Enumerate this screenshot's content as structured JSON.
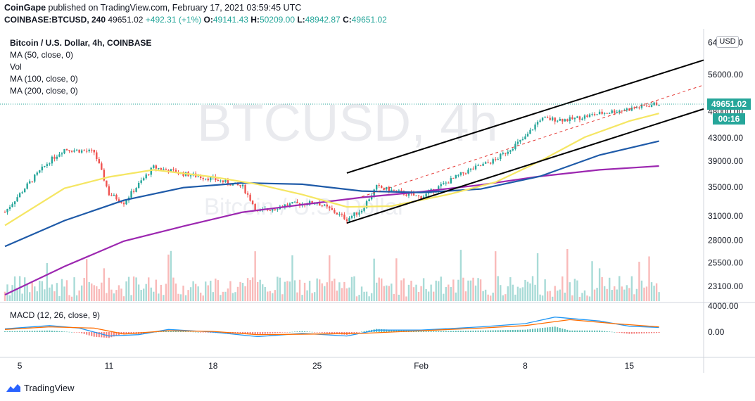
{
  "header": {
    "publisher": "CoinGape",
    "published_text": "published on TradingView.com, February 17, 2021 03:59:45 UTC",
    "symbol": "COINBASE:BTCUSD, 240",
    "last": "49651.02",
    "change": "+492.31 (+1%)",
    "o_label": "O:",
    "o_value": "49141.43",
    "h_label": "H:",
    "h_value": "50209.00",
    "l_label": "L:",
    "l_value": "48942.87",
    "c_label": "C:",
    "c_value": "49651.02"
  },
  "legend": {
    "title": "Bitcoin / U.S. Dollar, 4h, COINBASE",
    "ma50": "MA (50, close, 0)",
    "vol": "Vol",
    "ma100": "MA (100, close, 0)",
    "ma200": "MA (200, close, 0)",
    "macd": "MACD (12, 26, close, 9)"
  },
  "watermark": {
    "symbol": "BTCUSD, 4h",
    "name": "Bitcoin / U.S. Dollar"
  },
  "axis_labels": {
    "price_ticks": [
      "64000.00",
      "56000.00",
      "48000.00",
      "43000.00",
      "39000.00",
      "35000.00",
      "31000.00",
      "28000.00",
      "25500.00",
      "23100.00"
    ],
    "macd_ticks": [
      "4000.00",
      "0.00"
    ],
    "x_ticks": [
      "5",
      "11",
      "18",
      "25",
      "Feb",
      "8",
      "15"
    ]
  },
  "badges": {
    "currency": "USD",
    "last_price": "49651.02",
    "countdown": "00:16"
  },
  "footer": {
    "brand": "TradingView"
  },
  "colors": {
    "up": "#26a69a",
    "down": "#ef5350",
    "ma50": "#f5e663",
    "ma100": "#1e5aa8",
    "ma200": "#9c27b0",
    "macd_line": "#2196f3",
    "signal_line": "#ff6d00",
    "channel": "#000000",
    "channel_mid": "#e53935"
  },
  "chart_data": {
    "type": "candlestick",
    "timeframe": "4h",
    "x_range": [
      "2021-01-04",
      "2021-02-20"
    ],
    "x_ticks": [
      {
        "label": "5",
        "date": "2021-01-05"
      },
      {
        "label": "11",
        "date": "2021-01-11"
      },
      {
        "label": "18",
        "date": "2021-01-18"
      },
      {
        "label": "25",
        "date": "2021-01-25"
      },
      {
        "label": "Feb",
        "date": "2021-02-01"
      },
      {
        "label": "8",
        "date": "2021-02-08"
      },
      {
        "label": "15",
        "date": "2021-02-15"
      }
    ],
    "price_scale": "log",
    "y_ticks": [
      23100,
      25500,
      28000,
      31000,
      35000,
      39000,
      43000,
      48000,
      56000,
      64000
    ],
    "price_path": [
      {
        "date": "2021-01-04",
        "close": 31500
      },
      {
        "date": "2021-01-05",
        "close": 34000
      },
      {
        "date": "2021-01-07",
        "close": 39000
      },
      {
        "date": "2021-01-08",
        "close": 41000
      },
      {
        "date": "2021-01-10",
        "close": 40500
      },
      {
        "date": "2021-01-11",
        "close": 34000
      },
      {
        "date": "2021-01-12",
        "close": 32800
      },
      {
        "date": "2021-01-14",
        "close": 38000
      },
      {
        "date": "2021-01-16",
        "close": 37000
      },
      {
        "date": "2021-01-18",
        "close": 36200
      },
      {
        "date": "2021-01-20",
        "close": 35000
      },
      {
        "date": "2021-01-21",
        "close": 31500
      },
      {
        "date": "2021-01-23",
        "close": 32500
      },
      {
        "date": "2021-01-25",
        "close": 32800
      },
      {
        "date": "2021-01-27",
        "close": 30600
      },
      {
        "date": "2021-01-28",
        "close": 31800
      },
      {
        "date": "2021-01-29",
        "close": 35000
      },
      {
        "date": "2021-02-01",
        "close": 33500
      },
      {
        "date": "2021-02-04",
        "close": 37300
      },
      {
        "date": "2021-02-06",
        "close": 39200
      },
      {
        "date": "2021-02-08",
        "close": 43000
      },
      {
        "date": "2021-02-09",
        "close": 46500
      },
      {
        "date": "2021-02-11",
        "close": 46400
      },
      {
        "date": "2021-02-13",
        "close": 47600
      },
      {
        "date": "2021-02-15",
        "close": 48500
      },
      {
        "date": "2021-02-17",
        "close": 49651.02
      }
    ],
    "ma50": [
      {
        "date": "2021-01-04",
        "value": 29800
      },
      {
        "date": "2021-01-08",
        "value": 34800
      },
      {
        "date": "2021-01-11",
        "value": 36500
      },
      {
        "date": "2021-01-14",
        "value": 37600
      },
      {
        "date": "2021-01-18",
        "value": 36500
      },
      {
        "date": "2021-01-21",
        "value": 35400
      },
      {
        "date": "2021-01-24",
        "value": 33900
      },
      {
        "date": "2021-01-27",
        "value": 32200
      },
      {
        "date": "2021-01-30",
        "value": 32300
      },
      {
        "date": "2021-02-03",
        "value": 34000
      },
      {
        "date": "2021-02-06",
        "value": 35700
      },
      {
        "date": "2021-02-09",
        "value": 39000
      },
      {
        "date": "2021-02-12",
        "value": 43100
      },
      {
        "date": "2021-02-15",
        "value": 46100
      },
      {
        "date": "2021-02-17",
        "value": 47600
      }
    ],
    "ma100": [
      {
        "date": "2021-01-04",
        "value": 27300
      },
      {
        "date": "2021-01-08",
        "value": 30400
      },
      {
        "date": "2021-01-12",
        "value": 33100
      },
      {
        "date": "2021-01-16",
        "value": 34900
      },
      {
        "date": "2021-01-20",
        "value": 35600
      },
      {
        "date": "2021-01-24",
        "value": 35400
      },
      {
        "date": "2021-01-28",
        "value": 34400
      },
      {
        "date": "2021-02-01",
        "value": 34200
      },
      {
        "date": "2021-02-05",
        "value": 34700
      },
      {
        "date": "2021-02-09",
        "value": 36600
      },
      {
        "date": "2021-02-13",
        "value": 40000
      },
      {
        "date": "2021-02-17",
        "value": 42400
      }
    ],
    "ma200": [
      {
        "date": "2021-01-04",
        "value": 22300
      },
      {
        "date": "2021-01-08",
        "value": 25100
      },
      {
        "date": "2021-01-12",
        "value": 27900
      },
      {
        "date": "2021-01-16",
        "value": 29700
      },
      {
        "date": "2021-01-20",
        "value": 31500
      },
      {
        "date": "2021-01-24",
        "value": 32500
      },
      {
        "date": "2021-01-28",
        "value": 33500
      },
      {
        "date": "2021-02-01",
        "value": 34300
      },
      {
        "date": "2021-02-05",
        "value": 35300
      },
      {
        "date": "2021-02-09",
        "value": 36600
      },
      {
        "date": "2021-02-13",
        "value": 37600
      },
      {
        "date": "2021-02-17",
        "value": 38200
      }
    ],
    "channel": {
      "upper": [
        {
          "date": "2021-01-27",
          "value": 37100
        },
        {
          "date": "2021-02-20",
          "value": 59500
        }
      ],
      "lower": [
        {
          "date": "2021-01-27",
          "value": 30100
        },
        {
          "date": "2021-02-20",
          "value": 48500
        }
      ],
      "mid": [
        {
          "date": "2021-01-28",
          "value": 33600
        },
        {
          "date": "2021-02-20",
          "value": 53600
        }
      ]
    },
    "macd": {
      "y_range": [
        -3000,
        5000
      ],
      "macd_line": [
        {
          "date": "2021-01-04",
          "value": 500
        },
        {
          "date": "2021-01-07",
          "value": 1000
        },
        {
          "date": "2021-01-09",
          "value": 600
        },
        {
          "date": "2021-01-11",
          "value": -600
        },
        {
          "date": "2021-01-13",
          "value": -400
        },
        {
          "date": "2021-01-15",
          "value": 400
        },
        {
          "date": "2021-01-18",
          "value": 0
        },
        {
          "date": "2021-01-21",
          "value": -700
        },
        {
          "date": "2021-01-24",
          "value": -200
        },
        {
          "date": "2021-01-27",
          "value": -600
        },
        {
          "date": "2021-01-29",
          "value": 300
        },
        {
          "date": "2021-02-01",
          "value": 300
        },
        {
          "date": "2021-02-05",
          "value": 800
        },
        {
          "date": "2021-02-08",
          "value": 1300
        },
        {
          "date": "2021-02-10",
          "value": 2300
        },
        {
          "date": "2021-02-13",
          "value": 1700
        },
        {
          "date": "2021-02-15",
          "value": 900
        },
        {
          "date": "2021-02-17",
          "value": 700
        }
      ],
      "signal_line": [
        {
          "date": "2021-01-04",
          "value": 400
        },
        {
          "date": "2021-01-07",
          "value": 800
        },
        {
          "date": "2021-01-10",
          "value": 600
        },
        {
          "date": "2021-01-12",
          "value": -300
        },
        {
          "date": "2021-01-15",
          "value": 200
        },
        {
          "date": "2021-01-18",
          "value": 100
        },
        {
          "date": "2021-01-21",
          "value": -400
        },
        {
          "date": "2021-01-25",
          "value": -300
        },
        {
          "date": "2021-01-28",
          "value": -200
        },
        {
          "date": "2021-02-01",
          "value": 200
        },
        {
          "date": "2021-02-05",
          "value": 600
        },
        {
          "date": "2021-02-08",
          "value": 1000
        },
        {
          "date": "2021-02-11",
          "value": 1900
        },
        {
          "date": "2021-02-14",
          "value": 1300
        },
        {
          "date": "2021-02-17",
          "value": 800
        }
      ]
    }
  }
}
